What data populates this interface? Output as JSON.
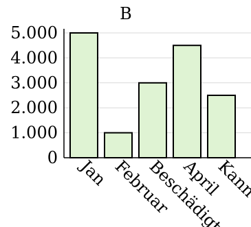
{
  "chart_data": {
    "type": "bar",
    "title": "B",
    "categories": [
      "Jan",
      "Februar",
      "Beschädigt",
      "April",
      "Kann"
    ],
    "values": [
      5000,
      1000,
      3000,
      4500,
      2500
    ],
    "ylim": [
      0,
      5000
    ],
    "yticks": [
      0,
      1000,
      2000,
      3000,
      4000,
      5000
    ],
    "ytick_labels": [
      "0",
      "1.000",
      "2.000",
      "3.000",
      "4.000",
      "5.000"
    ],
    "xlabel": "",
    "ylabel": "",
    "grid": true,
    "bar_color": "#dff3d3",
    "bar_edge_color": "#000000"
  }
}
